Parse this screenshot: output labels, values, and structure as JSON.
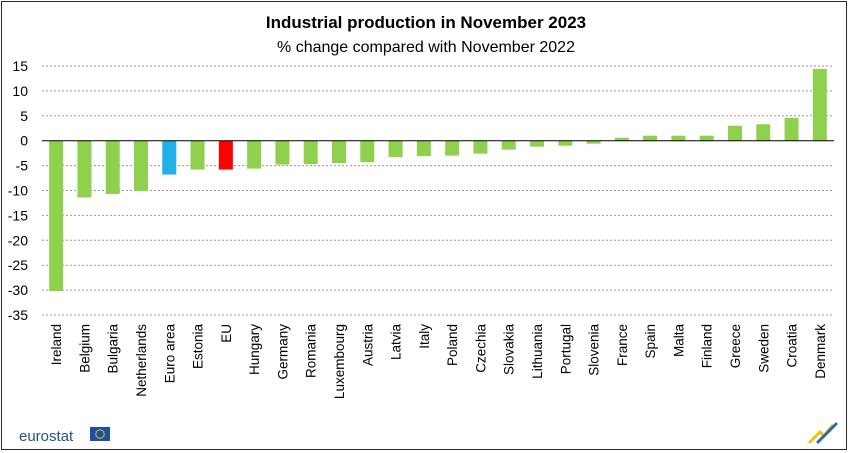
{
  "chart_data": {
    "type": "bar",
    "title": "Industrial production  in November 2023",
    "subtitle": "% change compared with November 2022",
    "xlabel": "",
    "ylabel": "",
    "ylim": [
      -35,
      15
    ],
    "yticks": [
      15,
      10,
      5,
      0,
      -5,
      -10,
      -15,
      -20,
      -25,
      -30,
      -35
    ],
    "grid": true,
    "categories": [
      "Ireland",
      "Belgium",
      "Bulgaria",
      "Netherlands",
      "Euro area",
      "Estonia",
      "EU",
      "Hungary",
      "Germany",
      "Romania",
      "Luxembourg",
      "Austria",
      "Latvia",
      "Italy",
      "Poland",
      "Czechia",
      "Slovakia",
      "Lithuania",
      "Portugal",
      "Slovenia",
      "France",
      "Spain",
      "Malta",
      "Finland",
      "Greece",
      "Sweden",
      "Croatia",
      "Denmark"
    ],
    "values": [
      -30.2,
      -11.4,
      -10.7,
      -10.1,
      -6.8,
      -5.8,
      -5.8,
      -5.6,
      -4.8,
      -4.7,
      -4.5,
      -4.3,
      -3.3,
      -3.1,
      -3.0,
      -2.6,
      -1.8,
      -1.2,
      -1.0,
      -0.6,
      0.6,
      1.0,
      1.0,
      1.0,
      3.0,
      3.3,
      4.6,
      14.4
    ],
    "colors": {
      "default": "#8fd14f",
      "Euro area": "#21b0e8",
      "EU": "#ff0000"
    }
  },
  "footer": {
    "logo_text": "eurostat"
  },
  "style": {
    "grid_color": "#9a9a9a",
    "axis_color": "#000000",
    "eu_flag_blue": "#1d4fa3",
    "eu_flag_star": "#ffd700",
    "corner_mark_yellow": "#f2c200",
    "corner_mark_blue": "#2c64b0"
  }
}
